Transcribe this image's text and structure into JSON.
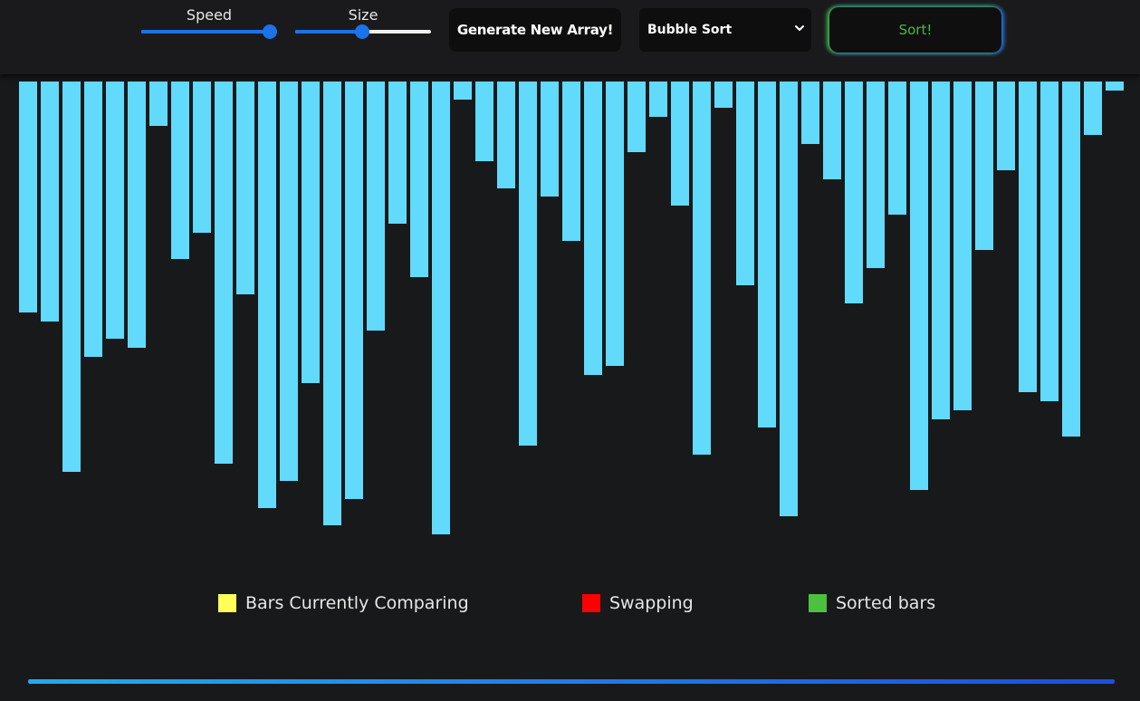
{
  "header": {
    "speed": {
      "label": "Speed",
      "value": 100,
      "min": 0,
      "max": 100
    },
    "size": {
      "label": "Size",
      "value": 49,
      "min": 0,
      "max": 100
    },
    "generate_label": "Generate New Array!",
    "algorithm": {
      "selected": "Bubble Sort"
    },
    "sort_label": "Sort!"
  },
  "colors": {
    "bar": "#61dafb",
    "comparing": "#ffff5a",
    "swapping": "#ff0000",
    "sorted": "#4ac23e"
  },
  "chart_data": {
    "type": "bar",
    "orientation": "hanging-from-top",
    "values": [
      255,
      265,
      431,
      304,
      284,
      294,
      49,
      196,
      167,
      422,
      235,
      471,
      441,
      333,
      490,
      461,
      275,
      157,
      216,
      500,
      20,
      88,
      118,
      402,
      127,
      176,
      324,
      314,
      78,
      39,
      137,
      412,
      29,
      225,
      382,
      480,
      69,
      108,
      245,
      206,
      147,
      451,
      373,
      363,
      186,
      98,
      343,
      353,
      392,
      59,
      10
    ]
  },
  "legend": [
    {
      "label": "Bars Currently Comparing",
      "color": "#ffff5a"
    },
    {
      "label": "Swapping",
      "color": "#ff0000"
    },
    {
      "label": "Sorted bars",
      "color": "#4ac23e"
    }
  ]
}
